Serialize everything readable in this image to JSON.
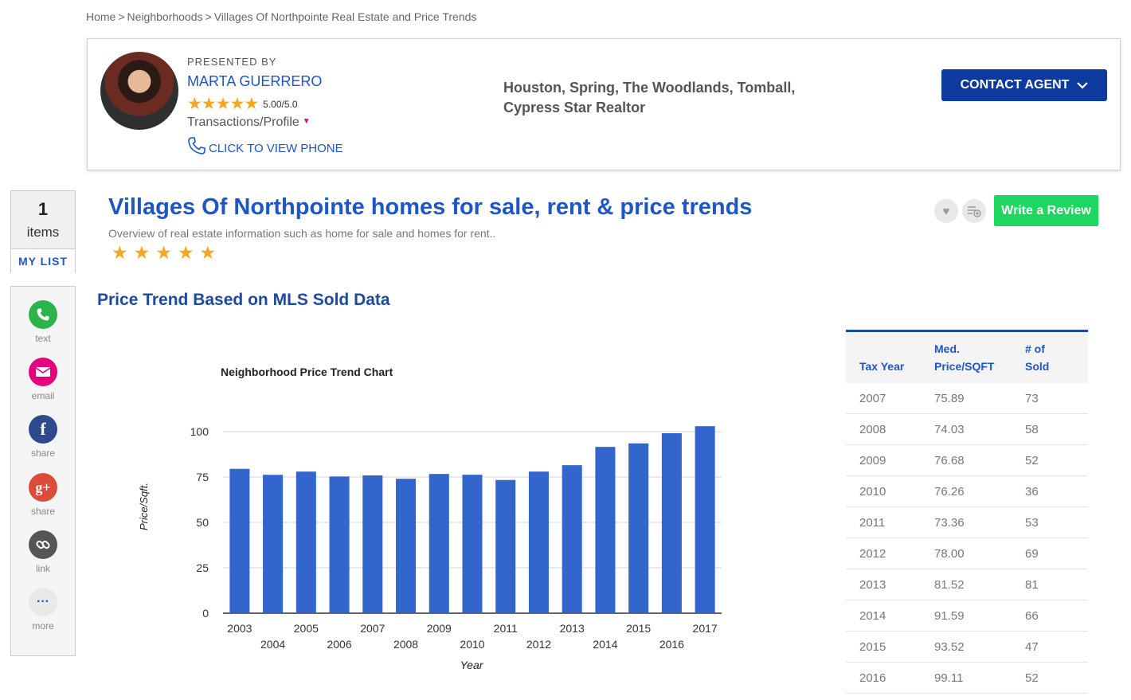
{
  "breadcrumb": {
    "home": "Home",
    "neighborhoods": "Neighborhoods",
    "current": "Villages Of Northpointe Real Estate and Price Trends",
    "separator": ">"
  },
  "agent": {
    "presented_by": "PRESENTED BY",
    "name": "MARTA GUERRERO",
    "rating": "5.00/5.0",
    "profile_menu": "Transactions/Profile",
    "phone_link": "CLICK TO VIEW PHONE",
    "service_area": "Houston, Spring, The Woodlands, Tomball, Cypress Star Realtor",
    "contact_button": "CONTACT AGENT"
  },
  "my_list": {
    "count": "1",
    "items_label": "items",
    "label": "MY LIST"
  },
  "share": [
    {
      "label": "text",
      "icon": "phone-icon",
      "color": "#2cb34a"
    },
    {
      "label": "email",
      "icon": "envelope-icon",
      "color": "#e4007c"
    },
    {
      "label": "share",
      "icon": "facebook-icon",
      "color": "#2d4a8c"
    },
    {
      "label": "share",
      "icon": "google-plus-icon",
      "color": "#dd4b39"
    },
    {
      "label": "link",
      "icon": "link-icon",
      "color": "#555555"
    },
    {
      "label": "more",
      "icon": "more-icon",
      "color": "#e0e0e0"
    }
  ],
  "page": {
    "title": "Villages Of Northpointe homes for sale, rent & price trends",
    "subtitle": "Overview of real estate information such as home for sale and homes for rent..",
    "review_button": "Write a Review"
  },
  "section_title": "Price Trend Based on MLS Sold Data",
  "chart_data": {
    "type": "bar",
    "title": "Neighborhood Price Trend Chart",
    "xlabel": "Year",
    "ylabel": "Price/Sqft.",
    "ylim": [
      0,
      100
    ],
    "yticks": [
      0,
      25,
      50,
      75,
      100
    ],
    "categories": [
      "2003",
      "2004",
      "2005",
      "2006",
      "2007",
      "2008",
      "2009",
      "2010",
      "2011",
      "2012",
      "2013",
      "2014",
      "2015",
      "2016",
      "2017"
    ],
    "values": [
      79.5,
      76.2,
      78.0,
      75.3,
      75.89,
      74.03,
      76.68,
      76.26,
      73.36,
      78.0,
      81.52,
      91.59,
      93.52,
      99.11,
      103.0
    ],
    "color": "#3366cc"
  },
  "table": {
    "headers": {
      "year": "Tax Year",
      "price_line1": "Med.",
      "price_line2": "Price/SQFT",
      "sold_line1": "# of",
      "sold_line2": "Sold"
    },
    "rows": [
      [
        "2007",
        "75.89",
        "73"
      ],
      [
        "2008",
        "74.03",
        "58"
      ],
      [
        "2009",
        "76.68",
        "52"
      ],
      [
        "2010",
        "76.26",
        "36"
      ],
      [
        "2011",
        "73.36",
        "53"
      ],
      [
        "2012",
        "78.00",
        "69"
      ],
      [
        "2013",
        "81.52",
        "81"
      ],
      [
        "2014",
        "91.59",
        "66"
      ],
      [
        "2015",
        "93.52",
        "47"
      ],
      [
        "2016",
        "99.11",
        "52"
      ]
    ]
  }
}
